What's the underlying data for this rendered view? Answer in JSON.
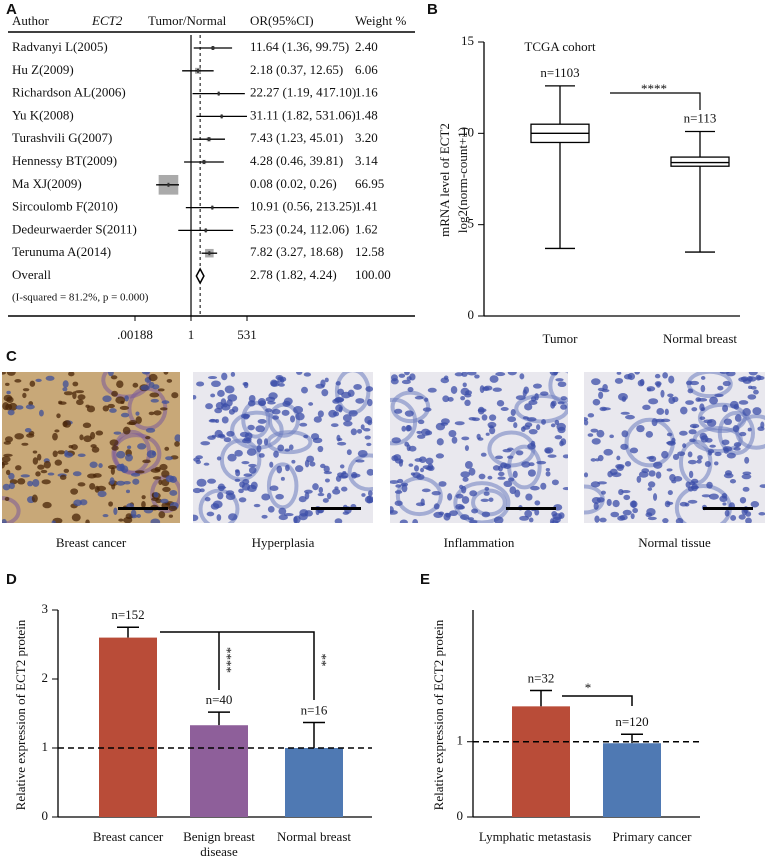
{
  "chart_data": [
    {
      "type": "forest",
      "panel_label": "A",
      "columns": [
        "Author",
        "ECT2",
        "Tumor/Normal",
        "OR(95%CI)",
        "Weight %"
      ],
      "studies": [
        "Radvanyi L(2005)",
        "Hu Z(2009)",
        "Richardson AL(2006)",
        "Yu K(2008)",
        "Turashvili G(2007)",
        "Hennessy BT(2009)",
        "Ma XJ(2009)",
        "Sircoulomb F(2010)",
        "Dedeurwaerder S(2011)",
        "Terunuma A(2014)"
      ],
      "or": [
        11.64,
        2.18,
        22.27,
        31.11,
        7.43,
        4.28,
        0.08,
        10.91,
        5.23,
        7.82
      ],
      "ci_low": [
        1.36,
        0.37,
        1.19,
        1.82,
        1.23,
        0.46,
        0.02,
        0.56,
        0.24,
        3.27
      ],
      "ci_high": [
        99.75,
        12.65,
        417.1,
        531.06,
        45.01,
        39.81,
        0.26,
        213.25,
        112.06,
        18.68
      ],
      "weights": [
        2.4,
        6.06,
        1.16,
        1.48,
        3.2,
        3.14,
        66.95,
        1.41,
        1.62,
        12.58
      ],
      "or_labels": [
        "11.64 (1.36, 99.75)",
        "2.18 (0.37, 12.65)",
        "22.27 (1.19, 417.10)",
        "31.11 (1.82, 531.06)",
        "7.43 (1.23, 45.01)",
        "4.28 (0.46, 39.81)",
        "0.08 (0.02, 0.26)",
        "10.91 (0.56, 213.25)",
        "5.23 (0.24, 112.06)",
        "7.82 (3.27, 18.68)"
      ],
      "weight_labels": [
        "2.40",
        "6.06",
        "1.16",
        "1.48",
        "3.20",
        "3.14",
        "66.95",
        "1.41",
        "1.62",
        "12.58"
      ],
      "overall": {
        "name": "Overall",
        "or": 2.78,
        "ci_low": 1.82,
        "ci_high": 4.24,
        "weight": 100,
        "or_label": "2.78 (1.82, 4.24)",
        "weight_label": "100.00"
      },
      "heterogeneity": "(I-squared = 81.2%, p = 0.000)",
      "log_scale": true,
      "xlim": [
        0.00188,
        531
      ],
      "xticks": [
        {
          "value": 0.00188,
          "label": ".00188"
        },
        1,
        531
      ],
      "null_line": 1,
      "box_color": "#aaaaaa"
    },
    {
      "type": "box",
      "panel_label": "B",
      "title": "TCGA cohort",
      "ylabel": [
        "mRNA level of ECT2",
        "log2(norm-count+1)"
      ],
      "categories": [
        "Tumor",
        "Normal breast"
      ],
      "whisker_low": [
        3.7,
        3.5
      ],
      "q1": [
        9.5,
        8.2
      ],
      "median": [
        10.0,
        8.4
      ],
      "q3": [
        10.5,
        8.7
      ],
      "whisker_high": [
        12.6,
        10.1
      ],
      "n_labels": [
        "n=1103",
        "n=113"
      ],
      "significance": "****",
      "ylim": [
        0,
        15
      ],
      "yticks": [
        0,
        5,
        10,
        15
      ]
    },
    {
      "type": "image_grid",
      "panel_label": "C",
      "captions": [
        "Breast cancer",
        "Hyperplasia",
        "Inflammation",
        "Normal tissue"
      ]
    },
    {
      "type": "bar",
      "panel_label": "D",
      "ylabel": "Relative expression of ECT2 protein",
      "categories": [
        "Breast cancer",
        "Benign breast disease",
        "Normal breast"
      ],
      "values": [
        2.6,
        1.33,
        1.0
      ],
      "errors": [
        0.15,
        0.19,
        0.37
      ],
      "colors": [
        "#b94c38",
        "#8e5f9a",
        "#4f79b3"
      ],
      "n_labels": [
        "n=152",
        "n=40",
        "n=16"
      ],
      "significance": [
        "****",
        "**"
      ],
      "reference_line": 1,
      "ylim": [
        0,
        3
      ],
      "yticks": [
        0,
        1,
        2,
        3
      ]
    },
    {
      "type": "bar",
      "panel_label": "E",
      "ylabel": "Relative expression of ECT2 protein",
      "categories": [
        "Lymphatic metastasis",
        "Primary cancer"
      ],
      "values": [
        1.47,
        0.98
      ],
      "errors": [
        0.21,
        0.12
      ],
      "colors": [
        "#b94c38",
        "#4f79b3"
      ],
      "n_labels": [
        "n=32",
        "n=120"
      ],
      "significance": [
        "*"
      ],
      "reference_line": 1,
      "ylim": [
        0,
        2.75
      ],
      "yticks": [
        0,
        1
      ]
    }
  ]
}
